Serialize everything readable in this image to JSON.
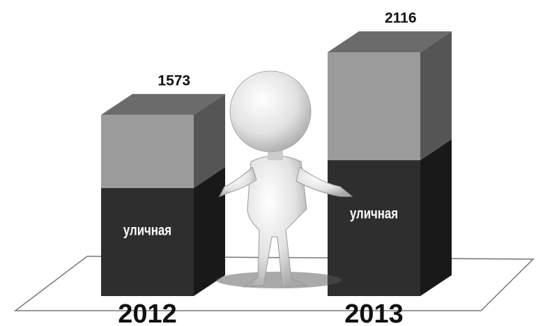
{
  "chart_data": {
    "type": "bar3d",
    "categories": [
      "2012",
      "2013"
    ],
    "series": [
      {
        "name": "уличная",
        "color": "#2e2e2e",
        "values": [
          938,
          1179
        ]
      },
      {
        "color": "#9b9b9b",
        "values": [
          635,
          937
        ]
      }
    ],
    "totals": [
      1573,
      2116
    ]
  }
}
